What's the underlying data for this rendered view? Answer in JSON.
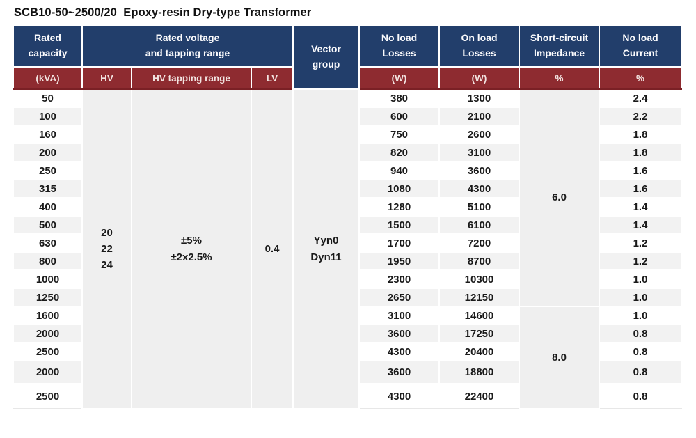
{
  "title": "SCB10-50~2500/20  Epoxy-resin Dry-type Transformer",
  "colors": {
    "header_blue": "#223E6B",
    "header_red": "#8E2B30",
    "divider_maroon": "#7A2025",
    "stripe_gray": "#F2F2F2",
    "merged_gray": "#EFEFEF"
  },
  "header": {
    "rated_capacity": "Rated\ncapacity",
    "rated_voltage": "Rated voltage\nand tapping range",
    "vector_group": "Vector\ngroup",
    "no_load_losses": "No load\nLosses",
    "on_load_losses": "On load\nLosses",
    "short_circuit_impedance": "Short-circuit\nImpedance",
    "no_load_current": "No load\nCurrent"
  },
  "subheader": {
    "kva": "(kVA)",
    "hv": "HV",
    "hv_tapping_range": "HV tapping range",
    "lv": "LV",
    "no_load_losses_unit": "(W)",
    "on_load_losses_unit": "(W)",
    "impedance_unit": "%",
    "current_unit": "%"
  },
  "merged": {
    "hv_values": [
      "20",
      "22",
      "24"
    ],
    "hv_tapping_values": [
      "±5%",
      "±2x2.5%"
    ],
    "lv_value": "0.4",
    "vector_values": [
      "Yyn0",
      "Dyn11"
    ],
    "impedance_groups": [
      {
        "value": "6.0",
        "rows": 12
      },
      {
        "value": "8.0",
        "rows": 5
      }
    ]
  },
  "rows": [
    {
      "kva": "50",
      "no_load_loss": "380",
      "on_load_loss": "1300",
      "current": "2.4"
    },
    {
      "kva": "100",
      "no_load_loss": "600",
      "on_load_loss": "2100",
      "current": "2.2"
    },
    {
      "kva": "160",
      "no_load_loss": "750",
      "on_load_loss": "2600",
      "current": "1.8"
    },
    {
      "kva": "200",
      "no_load_loss": "820",
      "on_load_loss": "3100",
      "current": "1.8"
    },
    {
      "kva": "250",
      "no_load_loss": "940",
      "on_load_loss": "3600",
      "current": "1.6"
    },
    {
      "kva": "315",
      "no_load_loss": "1080",
      "on_load_loss": "4300",
      "current": "1.6"
    },
    {
      "kva": "400",
      "no_load_loss": "1280",
      "on_load_loss": "5100",
      "current": "1.4"
    },
    {
      "kva": "500",
      "no_load_loss": "1500",
      "on_load_loss": "6100",
      "current": "1.4"
    },
    {
      "kva": "630",
      "no_load_loss": "1700",
      "on_load_loss": "7200",
      "current": "1.2"
    },
    {
      "kva": "800",
      "no_load_loss": "1950",
      "on_load_loss": "8700",
      "current": "1.2"
    },
    {
      "kva": "1000",
      "no_load_loss": "2300",
      "on_load_loss": "10300",
      "current": "1.0"
    },
    {
      "kva": "1250",
      "no_load_loss": "2650",
      "on_load_loss": "12150",
      "current": "1.0"
    },
    {
      "kva": "1600",
      "no_load_loss": "3100",
      "on_load_loss": "14600",
      "current": "1.0"
    },
    {
      "kva": "2000",
      "no_load_loss": "3600",
      "on_load_loss": "17250",
      "current": "0.8"
    },
    {
      "kva": "2500",
      "no_load_loss": "4300",
      "on_load_loss": "20400",
      "current": "0.8"
    },
    {
      "kva": "2000",
      "no_load_loss": "3600",
      "on_load_loss": "18800",
      "current": "0.8"
    },
    {
      "kva": "2500",
      "no_load_loss": "4300",
      "on_load_loss": "22400",
      "current": "0.8"
    }
  ]
}
